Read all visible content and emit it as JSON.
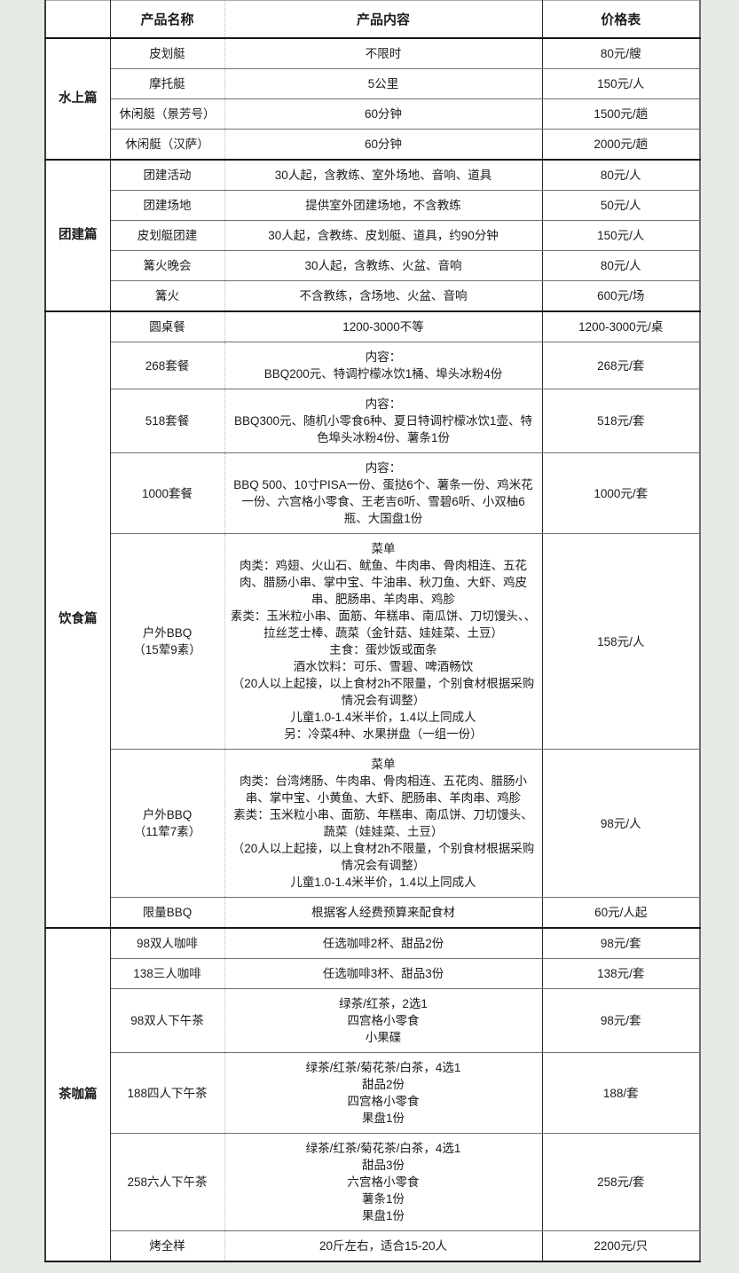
{
  "colors": {
    "page_background": "#e4ebe2",
    "table_background": "#ffffff",
    "border_strong": "#161616",
    "border_light": "#b8b8b8",
    "text": "#1c1c1c"
  },
  "table": {
    "headers": {
      "category": "",
      "name": "产品名称",
      "content": "产品内容",
      "price": "价格表"
    },
    "sections": [
      {
        "category": "水上篇",
        "rows": [
          {
            "name": "皮划艇",
            "content": [
              "不限时"
            ],
            "price": "80元/艘"
          },
          {
            "name": "摩托艇",
            "content": [
              "5公里"
            ],
            "price": "150元/人"
          },
          {
            "name": "休闲艇（景芳号）",
            "content": [
              "60分钟"
            ],
            "price": "1500元/趟"
          },
          {
            "name": "休闲艇（汉萨）",
            "content": [
              "60分钟"
            ],
            "price": "2000元/趟"
          }
        ]
      },
      {
        "category": "团建篇",
        "rows": [
          {
            "name": "团建活动",
            "content": [
              "30人起，含教练、室外场地、音响、道具"
            ],
            "price": "80元/人"
          },
          {
            "name": "团建场地",
            "content": [
              "提供室外团建场地，不含教练"
            ],
            "price": "50元/人"
          },
          {
            "name": "皮划艇团建",
            "content": [
              "30人起，含教练、皮划艇、道具，约90分钟"
            ],
            "price": "150元/人"
          },
          {
            "name": "篝火晚会",
            "content": [
              "30人起，含教练、火盆、音响"
            ],
            "price": "80元/人"
          },
          {
            "name": "篝火",
            "content": [
              "不含教练，含场地、火盆、音响"
            ],
            "price": "600元/场"
          }
        ]
      },
      {
        "category": "饮食篇",
        "rows": [
          {
            "name": "圆桌餐",
            "content": [
              "1200-3000不等"
            ],
            "price": "1200-3000元/桌"
          },
          {
            "name": "268套餐",
            "content": [
              "内容：",
              "BBQ200元、特调柠檬冰饮1桶、埠头冰粉4份"
            ],
            "price": "268元/套"
          },
          {
            "name": "518套餐",
            "content": [
              "内容：",
              "BBQ300元、随机小零食6种、夏日特调柠檬冰饮1壶、特色埠头冰粉4份、薯条1份"
            ],
            "price": "518元/套"
          },
          {
            "name": "1000套餐",
            "content": [
              "内容：",
              "BBQ 500、10寸PISA一份、蛋挞6个、薯条一份、鸡米花一份、六宫格小零食、王老吉6听、雪碧6听、小双柚6瓶、大国盘1份"
            ],
            "price": "1000元/套"
          },
          {
            "name": "户外BBQ\n（15荤9素）",
            "content": [
              "菜单",
              "肉类：鸡翅、火山石、鱿鱼、牛肉串、骨肉相连、五花肉、腊肠小串、掌中宝、牛油串、秋刀鱼、大虾、鸡皮串、肥肠串、羊肉串、鸡胗",
              "素类：玉米粒小串、面筋、年糕串、南瓜饼、刀切馒头、、拉丝芝士棒、蔬菜（金针菇、娃娃菜、土豆）",
              "主食：蛋炒饭或面条",
              "酒水饮料：可乐、雪碧、啤酒畅饮",
              "（20人以上起接，以上食材2h不限量，个别食材根据采购情况会有调整）",
              "儿童1.0-1.4米半价，1.4以上同成人",
              "另：冷菜4种、水果拼盘（一组一份）"
            ],
            "price": "158元/人"
          },
          {
            "name": "户外BBQ\n（11荤7素）",
            "content": [
              "菜单",
              "肉类：台湾烤肠、牛肉串、骨肉相连、五花肉、腊肠小串、掌中宝、小黄鱼、大虾、肥肠串、羊肉串、鸡胗",
              "素类：玉米粒小串、面筋、年糕串、南瓜饼、刀切馒头、蔬菜（娃娃菜、土豆）",
              "（20人以上起接，以上食材2h不限量，个别食材根据采购情况会有调整）",
              "儿童1.0-1.4米半价，1.4以上同成人"
            ],
            "price": "98元/人"
          },
          {
            "name": "限量BBQ",
            "content": [
              "根据客人经费预算来配食材"
            ],
            "price": "60元/人起"
          }
        ]
      },
      {
        "category": "茶咖篇",
        "rows": [
          {
            "name": "98双人咖啡",
            "content": [
              "任选咖啡2杯、甜品2份"
            ],
            "price": "98元/套"
          },
          {
            "name": "138三人咖啡",
            "content": [
              "任选咖啡3杯、甜品3份"
            ],
            "price": "138元/套"
          },
          {
            "name": "98双人下午茶",
            "content": [
              "绿茶/红茶，2选1",
              "四宫格小零食",
              "小果碟"
            ],
            "price": "98元/套"
          },
          {
            "name": "188四人下午茶",
            "content": [
              "绿茶/红茶/菊花茶/白茶，4选1",
              "甜品2份",
              "四宫格小零食",
              "果盘1份"
            ],
            "price": "188/套"
          },
          {
            "name": "258六人下午茶",
            "content": [
              "绿茶/红茶/菊花茶/白茶，4选1",
              "甜品3份",
              "六宫格小零食",
              "薯条1份",
              "果盘1份"
            ],
            "price": "258元/套"
          },
          {
            "name": "烤全样",
            "content": [
              "20斤左右，适合15-20人"
            ],
            "price": "2200元/只"
          }
        ]
      }
    ]
  }
}
